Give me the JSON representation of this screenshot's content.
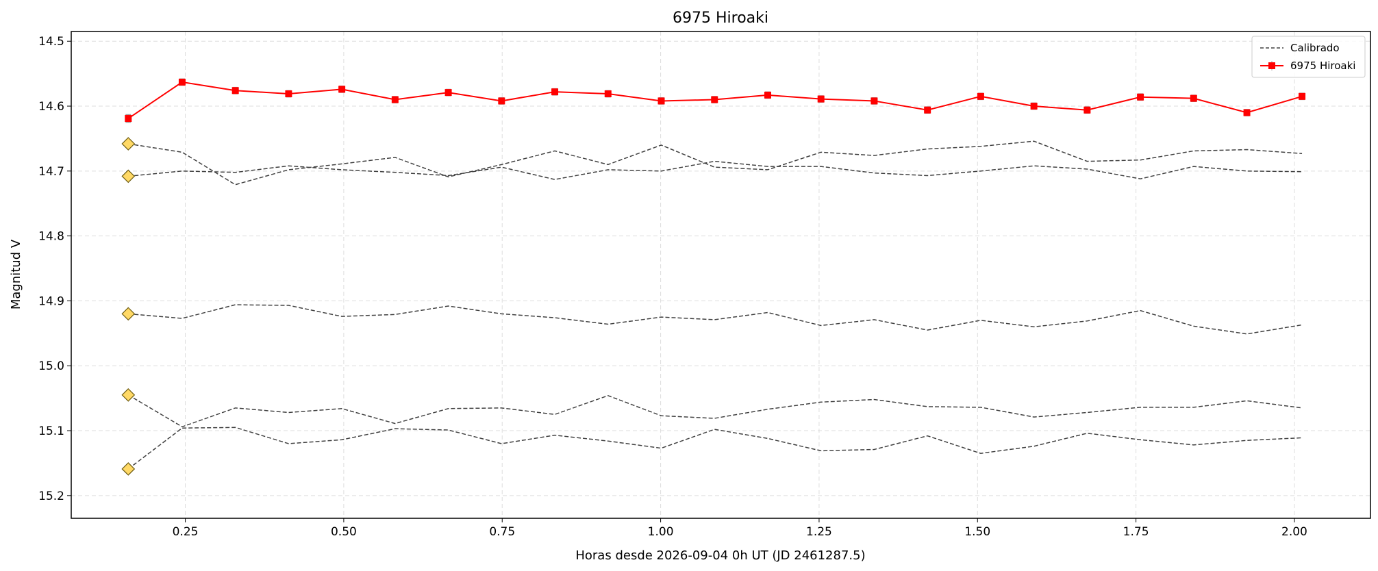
{
  "chart_data": {
    "type": "line",
    "title": "6975 Hiroaki",
    "xlabel": "Horas desde 2026-09-04 0h UT (JD 2461287.5)",
    "ylabel": "Magnitud V",
    "xlim": [
      0.07,
      2.12
    ],
    "ylim": [
      15.235,
      14.485
    ],
    "y_inverted": true,
    "grid": true,
    "legend_position": "top-right",
    "x_ticks": [
      0.25,
      0.5,
      0.75,
      1.0,
      1.25,
      1.5,
      1.75,
      2.0
    ],
    "x_tick_labels": [
      "0.25",
      "0.50",
      "0.75",
      "1.00",
      "1.25",
      "1.50",
      "1.75",
      "2.00"
    ],
    "y_ticks": [
      14.5,
      14.6,
      14.7,
      14.8,
      14.9,
      15.0,
      15.1,
      15.2
    ],
    "y_tick_labels": [
      "14.5",
      "14.6",
      "14.7",
      "14.8",
      "14.9",
      "15.0",
      "15.1",
      "15.2"
    ],
    "x": [
      0.16,
      0.245,
      0.329,
      0.413,
      0.497,
      0.581,
      0.665,
      0.749,
      0.833,
      0.917,
      1.001,
      1.085,
      1.169,
      1.253,
      1.337,
      1.421,
      1.505,
      1.589,
      1.673,
      1.757,
      1.841,
      1.925,
      2.012
    ],
    "series": [
      {
        "name": "6975 Hiroaki",
        "color": "#ff0000",
        "style": "solid-square-markers",
        "values": [
          14.619,
          14.563,
          14.576,
          14.581,
          14.574,
          14.59,
          14.579,
          14.592,
          14.578,
          14.581,
          14.592,
          14.59,
          14.583,
          14.589,
          14.592,
          14.606,
          14.585,
          14.6,
          14.606,
          14.586,
          14.588,
          14.61,
          14.585
        ],
        "errors": [
          0.006,
          0.005,
          0.005,
          0.005,
          0.005,
          0.005,
          0.005,
          0.005,
          0.005,
          0.005,
          0.005,
          0.005,
          0.005,
          0.005,
          0.005,
          0.005,
          0.005,
          0.005,
          0.005,
          0.005,
          0.005,
          0.005,
          0.005
        ]
      },
      {
        "name": "Calibrado",
        "color": "#404040",
        "style": "dashed",
        "values": [
          14.658,
          14.671,
          14.721,
          14.698,
          14.689,
          14.679,
          14.709,
          14.69,
          14.669,
          14.69,
          14.66,
          14.694,
          14.698,
          14.671,
          14.676,
          14.666,
          14.662,
          14.654,
          14.685,
          14.683,
          14.669,
          14.667,
          14.673
        ]
      },
      {
        "name": "Calibrado",
        "color": "#404040",
        "style": "dashed",
        "values": [
          14.708,
          14.7,
          14.702,
          14.692,
          14.698,
          14.702,
          14.707,
          14.694,
          14.713,
          14.698,
          14.7,
          14.685,
          14.693,
          14.693,
          14.703,
          14.707,
          14.7,
          14.692,
          14.697,
          14.712,
          14.693,
          14.7,
          14.701
        ]
      },
      {
        "name": "Calibrado",
        "color": "#404040",
        "style": "dashed",
        "values": [
          14.92,
          14.927,
          14.906,
          14.907,
          14.924,
          14.921,
          14.908,
          14.92,
          14.926,
          14.936,
          14.925,
          14.929,
          14.918,
          14.938,
          14.929,
          14.945,
          14.93,
          14.94,
          14.931,
          14.915,
          14.939,
          14.951,
          14.937
        ]
      },
      {
        "name": "Calibrado",
        "color": "#404040",
        "style": "dashed",
        "values": [
          15.045,
          15.094,
          15.065,
          15.072,
          15.066,
          15.089,
          15.066,
          15.065,
          15.075,
          15.046,
          15.077,
          15.081,
          15.067,
          15.056,
          15.052,
          15.063,
          15.064,
          15.079,
          15.072,
          15.064,
          15.064,
          15.054,
          15.065
        ]
      },
      {
        "name": "Calibrado",
        "color": "#404040",
        "style": "dashed",
        "values": [
          15.159,
          15.096,
          15.095,
          15.12,
          15.114,
          15.097,
          15.099,
          15.12,
          15.107,
          15.116,
          15.127,
          15.098,
          15.112,
          15.131,
          15.129,
          15.108,
          15.135,
          15.124,
          15.104,
          15.114,
          15.122,
          15.115,
          15.111
        ]
      }
    ],
    "markers": [
      {
        "x": 0.16,
        "y": 14.658,
        "shape": "diamond",
        "color": "#ffd966"
      },
      {
        "x": 0.16,
        "y": 14.708,
        "shape": "diamond",
        "color": "#ffd966"
      },
      {
        "x": 0.16,
        "y": 14.92,
        "shape": "diamond",
        "color": "#ffd966"
      },
      {
        "x": 0.16,
        "y": 15.045,
        "shape": "diamond",
        "color": "#ffd966"
      },
      {
        "x": 0.16,
        "y": 15.159,
        "shape": "diamond",
        "color": "#ffd966"
      }
    ],
    "legend": [
      {
        "label": "Calibrado",
        "color": "#404040",
        "style": "dashed"
      },
      {
        "label": "6975 Hiroaki",
        "color": "#ff0000",
        "style": "solid-square-markers"
      }
    ]
  }
}
